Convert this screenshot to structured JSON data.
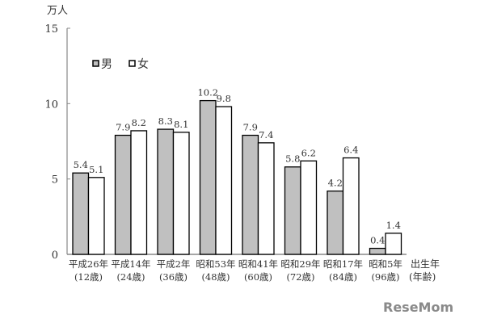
{
  "chart_data": {
    "type": "bar",
    "ylabel": "万人",
    "ylim": [
      0,
      15
    ],
    "yticks": [
      0,
      5,
      10,
      15
    ],
    "grid": false,
    "legend_position": "top-left",
    "categories": [
      "平成26年",
      "平成14年",
      "平成2年",
      "昭和53年",
      "昭和41年",
      "昭和29年",
      "昭和17年",
      "昭和5年"
    ],
    "category_sublabels": [
      "(12歳)",
      "(24歳)",
      "(36歳)",
      "(48歳)",
      "(60歳)",
      "(72歳)",
      "(84歳)",
      "(96歳)"
    ],
    "xlabel": [
      "出生年",
      "(年齢)"
    ],
    "series": [
      {
        "name": "男",
        "color": "#c0c0c0",
        "values": [
          5.4,
          7.9,
          8.3,
          10.2,
          7.9,
          5.8,
          4.2,
          0.4
        ]
      },
      {
        "name": "女",
        "color": "#ffffff",
        "values": [
          5.1,
          8.2,
          8.1,
          9.8,
          7.4,
          6.2,
          6.4,
          1.4
        ]
      }
    ]
  },
  "watermark": "ReseMom"
}
